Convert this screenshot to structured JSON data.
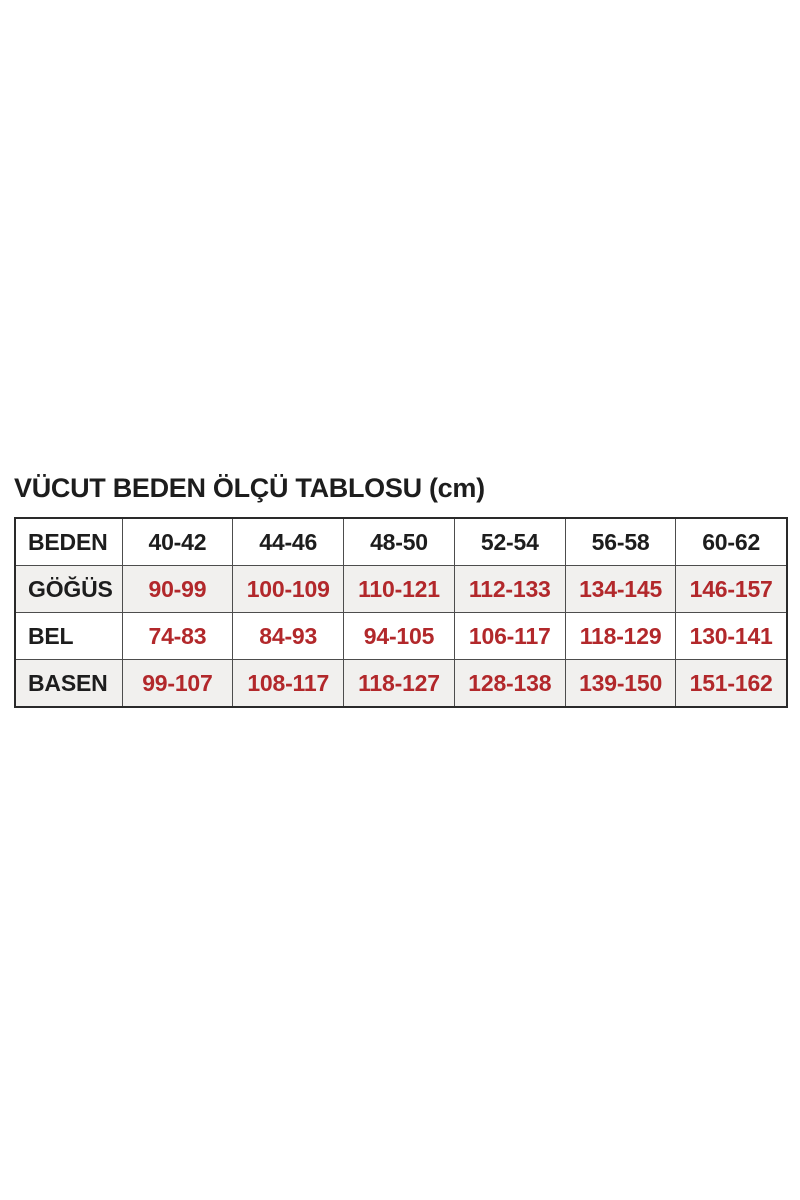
{
  "title": "VÜCUT BEDEN ÖLÇÜ TABLOSU (cm)",
  "table": {
    "header": [
      "BEDEN",
      "40-42",
      "44-46",
      "48-50",
      "52-54",
      "56-58",
      "60-62"
    ],
    "rows": [
      {
        "label": "GÖĞÜS",
        "values": [
          "90-99",
          "100-109",
          "110-121",
          "112-133",
          "134-145",
          "146-157"
        ]
      },
      {
        "label": "BEL",
        "values": [
          "74-83",
          "84-93",
          "94-105",
          "106-117",
          "118-129",
          "130-141"
        ]
      },
      {
        "label": "BASEN",
        "values": [
          "99-107",
          "108-117",
          "118-127",
          "128-138",
          "139-150",
          "151-162"
        ]
      }
    ]
  },
  "colors": {
    "value_red": "#b2282b",
    "text_black": "#1d1d1d",
    "alt_row_bg": "#f1f0ee",
    "border": "#4d4d4d",
    "outer_border": "#2a2a2a",
    "page_bg": "#ffffff"
  },
  "chart_data": {
    "type": "table",
    "title": "VÜCUT BEDEN ÖLÇÜ TABLOSU (cm)",
    "unit": "cm",
    "columns": [
      "BEDEN",
      "40-42",
      "44-46",
      "48-50",
      "52-54",
      "56-58",
      "60-62"
    ],
    "rows": [
      [
        "GÖĞÜS",
        "90-99",
        "100-109",
        "110-121",
        "112-133",
        "134-145",
        "146-157"
      ],
      [
        "BEL",
        "74-83",
        "84-93",
        "94-105",
        "106-117",
        "118-129",
        "130-141"
      ],
      [
        "BASEN",
        "99-107",
        "108-117",
        "118-127",
        "128-138",
        "139-150",
        "151-162"
      ]
    ],
    "layout_hints": {
      "header_text_color": "#1d1d1d",
      "value_text_color": "#b2282b",
      "alternating_row_background": "#f1f0ee",
      "grid": "on"
    }
  }
}
